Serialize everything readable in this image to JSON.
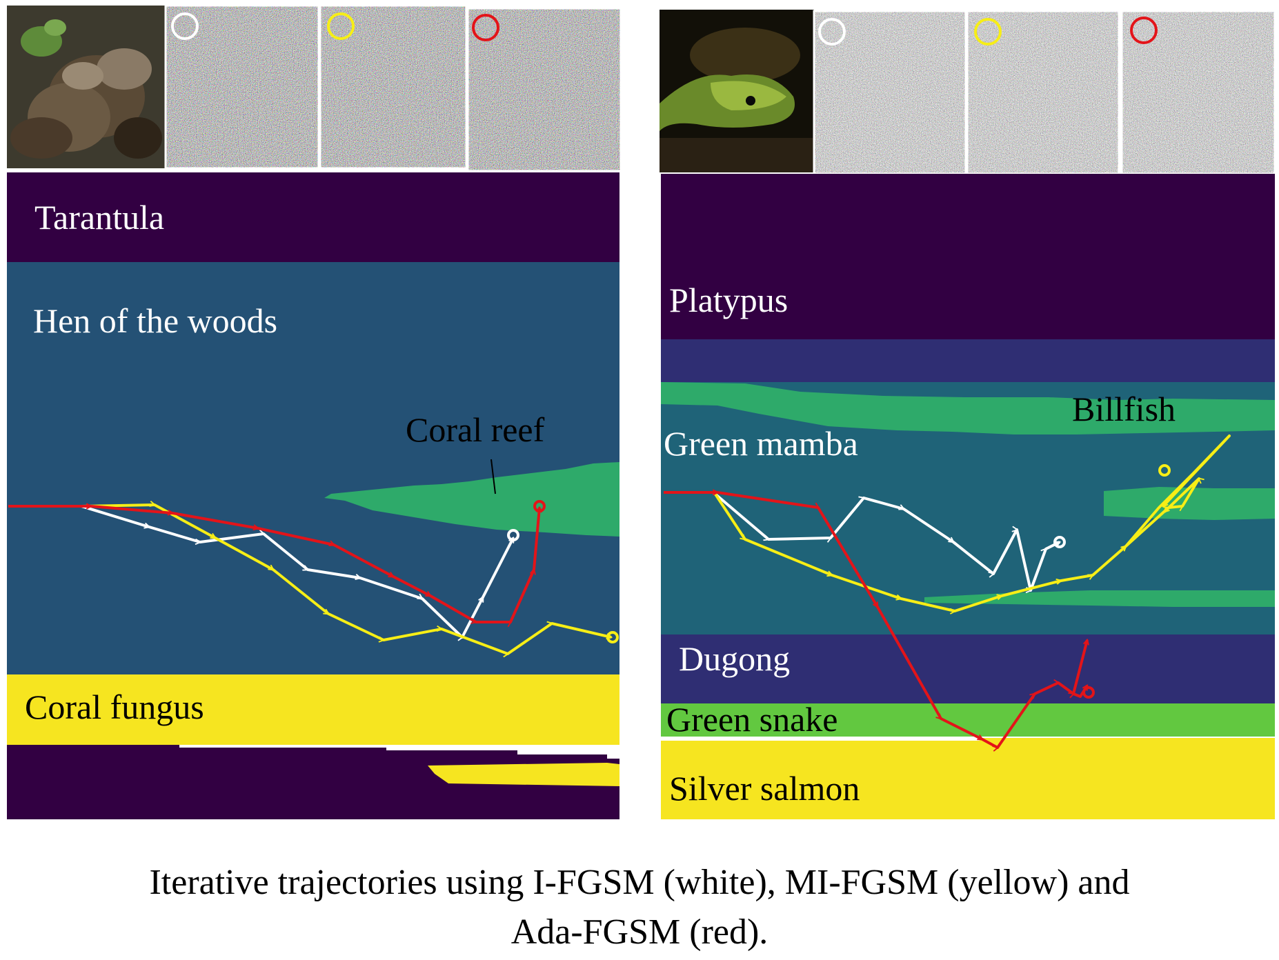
{
  "caption": {
    "line1": "Iterative trajectories using I-FGSM (white), MI-FGSM (yellow) and",
    "line2": "Ada-FGSM (red)."
  },
  "colors": {
    "purple_dark": "#320042",
    "blue_slate": "#245175",
    "teal": "#1f6378",
    "indigo": "#2f2e73",
    "green": "#2eaa6a",
    "lime": "#62c840",
    "yellow": "#f6e520",
    "traj_white": "#ffffff",
    "traj_yellow": "#f7ee16",
    "traj_red": "#e31419"
  },
  "panels": [
    {
      "id": "left",
      "thumbnails": [
        "original-photo",
        "noise-white",
        "noise-yellow",
        "noise-red"
      ],
      "labels": {
        "tarantula": "Tarantula",
        "hen": "Hen of the woods",
        "coral_reef": "Coral reef",
        "coral_fungus": "Coral fungus"
      }
    },
    {
      "id": "right",
      "thumbnails": [
        "original-photo",
        "noise-white",
        "noise-yellow",
        "noise-red"
      ],
      "labels": {
        "platypus": "Platypus",
        "billfish": "Billfish",
        "green_mamba": "Green mamba",
        "dugong": "Dugong",
        "green_snake": "Green snake",
        "silver_salmon": "Silver salmon"
      }
    }
  ]
}
